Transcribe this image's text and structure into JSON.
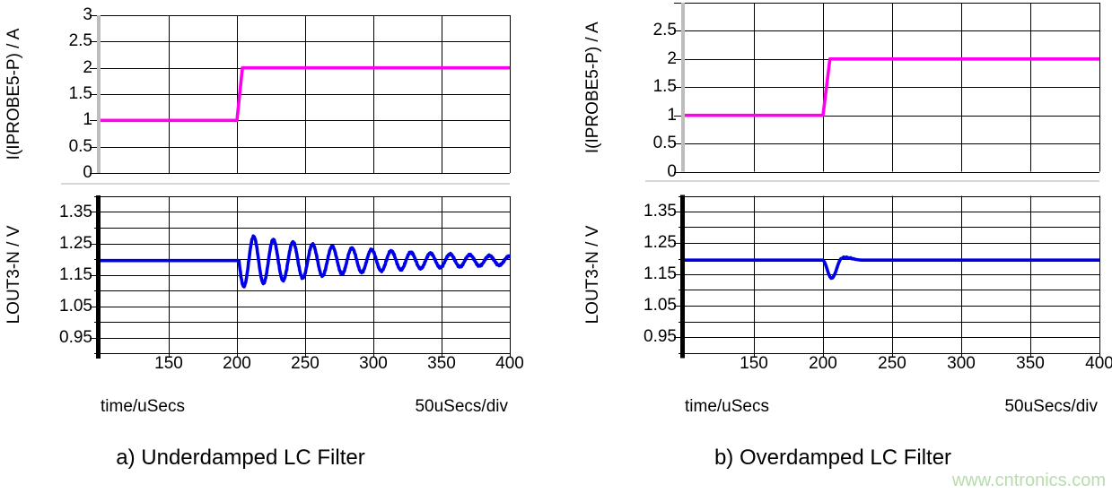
{
  "watermark": {
    "text": "www.cntronics.com",
    "color": "#b7dcae"
  },
  "style": {
    "background": "#ffffff",
    "grid_color": "#000000",
    "separator_color": "#c8c8c8",
    "current_axis_bar_color": "#bdbdbd",
    "voltage_axis_bar_color": "#000000",
    "text_color": "#000000"
  },
  "chart_data": [
    {
      "panel": "a",
      "title": "a) Underdamped LC Filter",
      "type": "line",
      "xlabel": "time/uSecs",
      "x_scale_label": "50uSecs/div",
      "x_ticks_us": [
        150,
        200,
        250,
        300,
        350,
        400
      ],
      "x_range_us": [
        100,
        400
      ],
      "grid": "on",
      "legend": "none",
      "subplots": [
        {
          "ylabel": "I(IPROBE5-P) / A",
          "unit": "A",
          "ylim": [
            0,
            3
          ],
          "y_grid_step": 0.5,
          "y_tick_labels": [
            "3",
            "2.5",
            "2",
            "1.5",
            "1",
            "0.5",
            "0"
          ],
          "series": [
            {
              "name": "I(IPROBE5-P)",
              "color": "#ff00ee",
              "type": "step",
              "points_us_A": [
                [
                  100,
                  1
                ],
                [
                  200,
                  1
                ],
                [
                  204,
                  2
                ],
                [
                  400,
                  2
                ]
              ]
            }
          ]
        },
        {
          "ylabel": "LOUT3-N / V",
          "unit": "V",
          "ylim": [
            0.9,
            1.4
          ],
          "y_grid_step": 0.05,
          "y_tick_labels": [
            "1.35",
            "1.25",
            "1.15",
            "1.05",
            "0.95"
          ],
          "series": [
            {
              "name": "LOUT3-N",
              "color": "#0000e8",
              "type": "damped_sine",
              "baseline_V": 1.195,
              "step_us": 201.5,
              "amplitude_V": 0.085,
              "period_us": 14.4,
              "decay_tau_us": 110,
              "first_swing": "down",
              "peak_points_us_V": [
                [
                  212,
                  1.272
                ],
                [
                  227,
                  1.263
                ],
                [
                  256,
                  1.247
                ],
                [
                  299,
                  1.228
                ],
                [
                  350,
                  1.217
                ],
                [
                  398,
                  1.207
                ]
              ],
              "trough_points_us_V": [
                [
                  205,
                  1.113
                ],
                [
                  220,
                  1.12
                ],
                [
                  248,
                  1.14
                ],
                [
                  292,
                  1.161
                ],
                [
                  343,
                  1.173
                ],
                [
                  400,
                  1.182
                ]
              ]
            }
          ]
        }
      ]
    },
    {
      "panel": "b",
      "title": "b) Overdamped LC Filter",
      "type": "line",
      "xlabel": "time/uSecs",
      "x_scale_label": "50uSecs/div",
      "x_ticks_us": [
        150,
        200,
        250,
        300,
        350,
        400
      ],
      "x_range_us": [
        100,
        400
      ],
      "grid": "on",
      "legend": "none",
      "subplots": [
        {
          "ylabel": "I(IPROBE5-P) / A",
          "unit": "A",
          "ylim": [
            0,
            3
          ],
          "y_grid_step": 0.5,
          "y_tick_labels": [
            "2.5",
            "2",
            "1.5",
            "1",
            "0.5",
            "0"
          ],
          "series": [
            {
              "name": "I(IPROBE5-P)",
              "color": "#ff00ee",
              "type": "step",
              "points_us_A": [
                [
                  100,
                  1
                ],
                [
                  200,
                  1
                ],
                [
                  205,
                  2
                ],
                [
                  400,
                  2
                ]
              ]
            }
          ]
        },
        {
          "ylabel": "LOUT3-N / V",
          "unit": "V",
          "ylim": [
            0.9,
            1.4
          ],
          "y_grid_step": 0.05,
          "y_tick_labels": [
            "1.35",
            "1.25",
            "1.15",
            "1.05",
            "0.95"
          ],
          "series": [
            {
              "name": "LOUT3-N",
              "color": "#0000e8",
              "type": "points",
              "points_us_V": [
                [
                  100,
                  1.195
                ],
                [
                  200,
                  1.195
                ],
                [
                  201,
                  1.19
                ],
                [
                  202,
                  1.179
                ],
                [
                  203,
                  1.166
                ],
                [
                  204,
                  1.152
                ],
                [
                  205,
                  1.142
                ],
                [
                  206,
                  1.137
                ],
                [
                  207,
                  1.139
                ],
                [
                  208,
                  1.146
                ],
                [
                  209,
                  1.156
                ],
                [
                  210,
                  1.169
                ],
                [
                  211,
                  1.182
                ],
                [
                  212,
                  1.193
                ],
                [
                  213,
                  1.2
                ],
                [
                  214,
                  1.201
                ],
                [
                  215,
                  1.205
                ],
                [
                  216,
                  1.202
                ],
                [
                  217,
                  1.205
                ],
                [
                  218,
                  1.203
                ],
                [
                  219,
                  1.201
                ],
                [
                  220,
                  1.203
                ],
                [
                  221,
                  1.199
                ],
                [
                  222,
                  1.2
                ],
                [
                  223,
                  1.198
                ],
                [
                  224,
                  1.197
                ],
                [
                  226,
                  1.196
                ],
                [
                  228,
                  1.195
                ],
                [
                  400,
                  1.195
                ]
              ]
            }
          ]
        }
      ]
    }
  ]
}
